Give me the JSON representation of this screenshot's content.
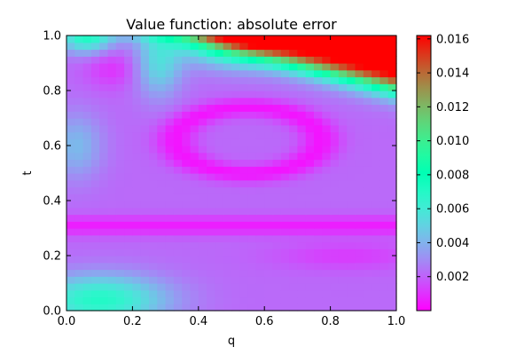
{
  "chart_data": {
    "type": "heatmap",
    "title": "Value function: absolute error",
    "xlabel": "q",
    "ylabel": "t",
    "xlim": [
      0.0,
      1.0
    ],
    "ylim": [
      0.0,
      1.0
    ],
    "x_ticks": [
      "0.0",
      "0.2",
      "0.4",
      "0.6",
      "0.8",
      "1.0"
    ],
    "y_ticks": [
      "0.0",
      "0.2",
      "0.4",
      "0.6",
      "0.8",
      "1.0"
    ],
    "colormap": "rainbow",
    "color_range": [
      0.0,
      0.0162
    ],
    "colorbar_ticks": [
      "0.002",
      "0.004",
      "0.006",
      "0.008",
      "0.010",
      "0.012",
      "0.014",
      "0.016"
    ],
    "grid_resolution": [
      40,
      40
    ],
    "grid": false,
    "features": [
      {
        "description": "maximum error region",
        "q_range": [
          0.6,
          1.0
        ],
        "t_range": [
          0.88,
          1.0
        ],
        "approx_value": 0.0162
      },
      {
        "description": "minimum error ring",
        "center": [
          0.55,
          0.62
        ],
        "approx_value": 0.0002
      },
      {
        "description": "low error band",
        "t_range": [
          0.28,
          0.34
        ],
        "approx_value": 0.0006
      },
      {
        "description": "moderate error region",
        "q_range": [
          0.0,
          0.3
        ],
        "t_range": [
          0.0,
          0.12
        ],
        "approx_value": 0.007
      }
    ]
  }
}
